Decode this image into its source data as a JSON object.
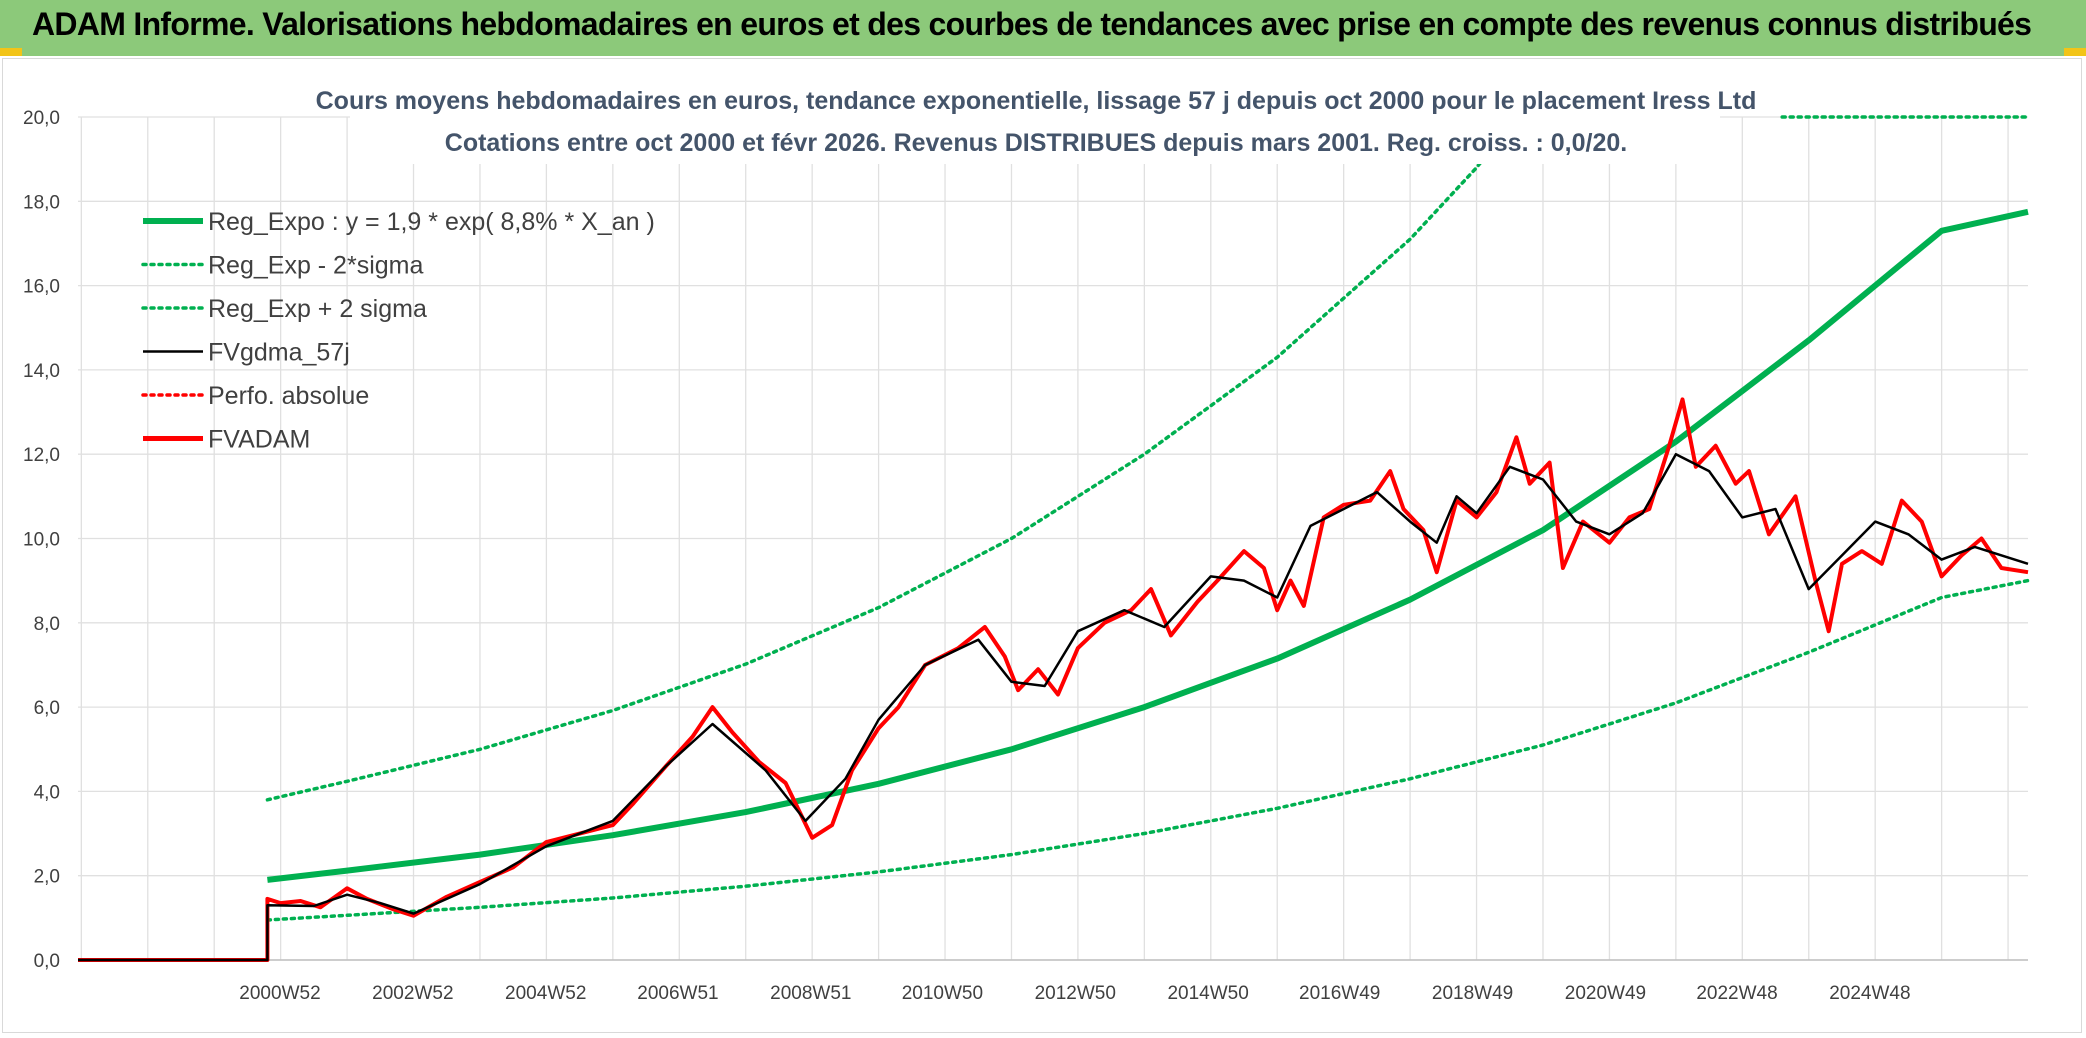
{
  "header": {
    "title": "ADAM Informe. Valorisations hebdomadaires en euros et des courbes de tendances avec prise en compte des revenus connus distribués"
  },
  "colors": {
    "banner": "#8cc97a",
    "green": "#00b050",
    "red": "#ff0000",
    "black": "#000000",
    "grid": "#e0e0e0",
    "title": "#44546a"
  },
  "chart_data": {
    "type": "line",
    "title_line1": "Cours moyens hebdomadaires en euros, tendance exponentielle, lissage 57 j depuis oct 2000 pour le placement Iress Ltd",
    "title_line2": "Cotations entre oct 2000 et févr 2026. Revenus DISTRIBUES depuis mars 2001. Reg. croiss. : 0,0/20.",
    "ylim": [
      0,
      20
    ],
    "y_ticks": [
      "0,0",
      "2,0",
      "4,0",
      "6,0",
      "8,0",
      "10,0",
      "12,0",
      "14,0",
      "16,0",
      "18,0",
      "20,0"
    ],
    "x_range_years": [
      1997.95,
      2027.3
    ],
    "x_ticks": [
      {
        "label": "2000W52",
        "x": 2000.99
      },
      {
        "label": "2002W52",
        "x": 2002.99
      },
      {
        "label": "2004W52",
        "x": 2004.99
      },
      {
        "label": "2006W51",
        "x": 2006.98
      },
      {
        "label": "2008W51",
        "x": 2008.98
      },
      {
        "label": "2010W50",
        "x": 2010.96
      },
      {
        "label": "2012W50",
        "x": 2012.96
      },
      {
        "label": "2014W50",
        "x": 2014.96
      },
      {
        "label": "2016W49",
        "x": 2016.94
      },
      {
        "label": "2018W49",
        "x": 2018.94
      },
      {
        "label": "2020W49",
        "x": 2020.94
      },
      {
        "label": "2022W48",
        "x": 2022.92
      },
      {
        "label": "2024W48",
        "x": 2024.92
      }
    ],
    "grid": true,
    "legend_position": "top-left",
    "series": [
      {
        "name": "Reg_Expo : y = 1,9 * exp( 8,8% *  X_an )",
        "color": "#00b050",
        "style": "solid-thick",
        "points": [
          [
            2000.8,
            1.9
          ],
          [
            2002,
            2.12
          ],
          [
            2004,
            2.5
          ],
          [
            2006,
            2.96
          ],
          [
            2008,
            3.51
          ],
          [
            2010,
            4.18
          ],
          [
            2012,
            5.0
          ],
          [
            2014,
            6.0
          ],
          [
            2016,
            7.15
          ],
          [
            2018,
            8.55
          ],
          [
            2020,
            10.2
          ],
          [
            2022,
            12.3
          ],
          [
            2024,
            14.7
          ],
          [
            2026,
            17.3
          ],
          [
            2027.3,
            17.75
          ]
        ]
      },
      {
        "name": "Reg_Exp - 2*sigma",
        "color": "#00b050",
        "style": "dotted",
        "points": [
          [
            2000.8,
            0.95
          ],
          [
            2002,
            1.06
          ],
          [
            2004,
            1.25
          ],
          [
            2006,
            1.47
          ],
          [
            2008,
            1.75
          ],
          [
            2010,
            2.09
          ],
          [
            2012,
            2.5
          ],
          [
            2014,
            3.0
          ],
          [
            2016,
            3.6
          ],
          [
            2018,
            4.3
          ],
          [
            2020,
            5.1
          ],
          [
            2022,
            6.1
          ],
          [
            2024,
            7.3
          ],
          [
            2026,
            8.6
          ],
          [
            2027.3,
            9.0
          ]
        ]
      },
      {
        "name": "Reg_Exp + 2 sigma",
        "color": "#00b050",
        "style": "dotted",
        "points": [
          [
            2000.8,
            3.8
          ],
          [
            2002,
            4.24
          ],
          [
            2004,
            5.0
          ],
          [
            2006,
            5.92
          ],
          [
            2008,
            7.02
          ],
          [
            2010,
            8.36
          ],
          [
            2012,
            10.0
          ],
          [
            2014,
            12.0
          ],
          [
            2016,
            14.3
          ],
          [
            2018,
            17.1
          ],
          [
            2019,
            18.8
          ],
          [
            2019.6,
            20
          ]
        ],
        "top_segment": [
          [
            2023.6,
            20
          ],
          [
            2027.3,
            20
          ]
        ]
      },
      {
        "name": "FVgdma_57j",
        "color": "#000000",
        "style": "solid",
        "points": [
          [
            1997.95,
            0
          ],
          [
            2000.8,
            0
          ],
          [
            2000.8,
            1.3
          ],
          [
            2001.5,
            1.28
          ],
          [
            2002,
            1.55
          ],
          [
            2002.5,
            1.35
          ],
          [
            2003,
            1.1
          ],
          [
            2004,
            1.8
          ],
          [
            2005,
            2.7
          ],
          [
            2006,
            3.3
          ],
          [
            2006.8,
            4.6
          ],
          [
            2007.5,
            5.6
          ],
          [
            2008.3,
            4.5
          ],
          [
            2008.9,
            3.3
          ],
          [
            2009.5,
            4.3
          ],
          [
            2010,
            5.7
          ],
          [
            2010.7,
            7.0
          ],
          [
            2011.5,
            7.6
          ],
          [
            2012,
            6.6
          ],
          [
            2012.5,
            6.5
          ],
          [
            2013,
            7.8
          ],
          [
            2013.7,
            8.3
          ],
          [
            2014.3,
            7.9
          ],
          [
            2015,
            9.1
          ],
          [
            2015.5,
            9.0
          ],
          [
            2016,
            8.6
          ],
          [
            2016.5,
            10.3
          ],
          [
            2017,
            10.7
          ],
          [
            2017.5,
            11.1
          ],
          [
            2018,
            10.4
          ],
          [
            2018.4,
            9.9
          ],
          [
            2018.7,
            11.0
          ],
          [
            2019,
            10.6
          ],
          [
            2019.5,
            11.7
          ],
          [
            2020,
            11.4
          ],
          [
            2020.5,
            10.4
          ],
          [
            2021,
            10.1
          ],
          [
            2021.5,
            10.6
          ],
          [
            2022,
            12.0
          ],
          [
            2022.5,
            11.6
          ],
          [
            2023,
            10.5
          ],
          [
            2023.5,
            10.7
          ],
          [
            2024,
            8.8
          ],
          [
            2024.5,
            9.6
          ],
          [
            2025,
            10.4
          ],
          [
            2025.5,
            10.1
          ],
          [
            2026,
            9.5
          ],
          [
            2026.5,
            9.8
          ],
          [
            2027.3,
            9.4
          ]
        ]
      },
      {
        "name": "Perfo. absolue",
        "color": "#ff0000",
        "style": "dotted",
        "points": []
      },
      {
        "name": "FVADAM",
        "color": "#ff0000",
        "style": "solid-thick",
        "points": [
          [
            1997.95,
            0
          ],
          [
            2000.8,
            0
          ],
          [
            2000.8,
            1.45
          ],
          [
            2001,
            1.35
          ],
          [
            2001.3,
            1.4
          ],
          [
            2001.6,
            1.25
          ],
          [
            2002,
            1.7
          ],
          [
            2002.3,
            1.45
          ],
          [
            2002.7,
            1.2
          ],
          [
            2003,
            1.05
          ],
          [
            2003.5,
            1.5
          ],
          [
            2004,
            1.85
          ],
          [
            2004.5,
            2.2
          ],
          [
            2005,
            2.8
          ],
          [
            2005.5,
            3.0
          ],
          [
            2006,
            3.2
          ],
          [
            2006.3,
            3.7
          ],
          [
            2006.8,
            4.6
          ],
          [
            2007.2,
            5.3
          ],
          [
            2007.5,
            6.0
          ],
          [
            2007.8,
            5.4
          ],
          [
            2008.2,
            4.7
          ],
          [
            2008.6,
            4.2
          ],
          [
            2009,
            2.9
          ],
          [
            2009.3,
            3.2
          ],
          [
            2009.6,
            4.5
          ],
          [
            2010,
            5.5
          ],
          [
            2010.3,
            6.0
          ],
          [
            2010.7,
            7.0
          ],
          [
            2011.2,
            7.4
          ],
          [
            2011.6,
            7.9
          ],
          [
            2011.9,
            7.2
          ],
          [
            2012.1,
            6.4
          ],
          [
            2012.4,
            6.9
          ],
          [
            2012.7,
            6.3
          ],
          [
            2013,
            7.4
          ],
          [
            2013.4,
            8.0
          ],
          [
            2013.8,
            8.3
          ],
          [
            2014.1,
            8.8
          ],
          [
            2014.4,
            7.7
          ],
          [
            2014.8,
            8.5
          ],
          [
            2015.1,
            9.0
          ],
          [
            2015.5,
            9.7
          ],
          [
            2015.8,
            9.3
          ],
          [
            2016,
            8.3
          ],
          [
            2016.2,
            9.0
          ],
          [
            2016.4,
            8.4
          ],
          [
            2016.7,
            10.5
          ],
          [
            2017,
            10.8
          ],
          [
            2017.4,
            10.9
          ],
          [
            2017.7,
            11.6
          ],
          [
            2017.9,
            10.7
          ],
          [
            2018.2,
            10.2
          ],
          [
            2018.4,
            9.2
          ],
          [
            2018.7,
            10.9
          ],
          [
            2019,
            10.5
          ],
          [
            2019.3,
            11.1
          ],
          [
            2019.6,
            12.4
          ],
          [
            2019.8,
            11.3
          ],
          [
            2020.1,
            11.8
          ],
          [
            2020.3,
            9.3
          ],
          [
            2020.6,
            10.4
          ],
          [
            2021,
            9.9
          ],
          [
            2021.3,
            10.5
          ],
          [
            2021.6,
            10.7
          ],
          [
            2021.9,
            12.2
          ],
          [
            2022.1,
            13.3
          ],
          [
            2022.3,
            11.7
          ],
          [
            2022.6,
            12.2
          ],
          [
            2022.9,
            11.3
          ],
          [
            2023.1,
            11.6
          ],
          [
            2023.4,
            10.1
          ],
          [
            2023.8,
            11.0
          ],
          [
            2024.1,
            9.0
          ],
          [
            2024.3,
            7.8
          ],
          [
            2024.5,
            9.4
          ],
          [
            2024.8,
            9.7
          ],
          [
            2025.1,
            9.4
          ],
          [
            2025.4,
            10.9
          ],
          [
            2025.7,
            10.4
          ],
          [
            2026,
            9.1
          ],
          [
            2026.3,
            9.6
          ],
          [
            2026.6,
            10.0
          ],
          [
            2026.9,
            9.3
          ],
          [
            2027.3,
            9.2
          ]
        ]
      }
    ]
  }
}
